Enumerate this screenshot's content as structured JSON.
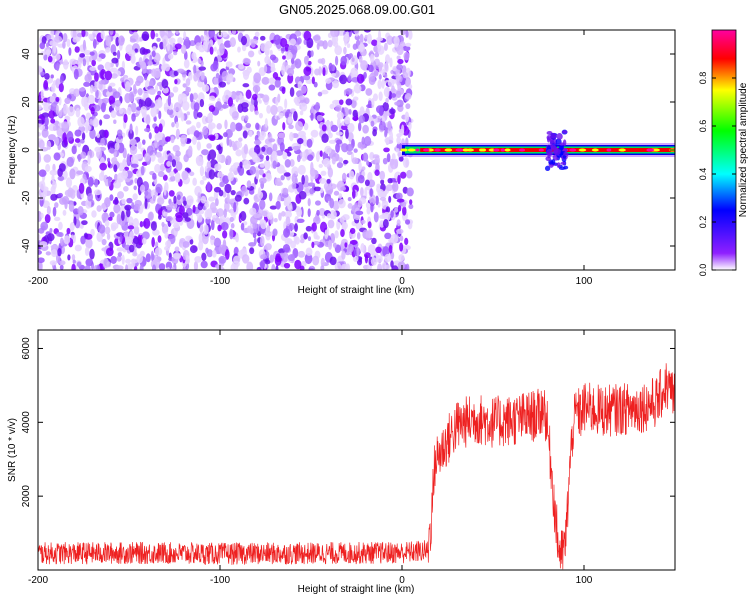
{
  "page": {
    "title": "GN05.2025.068.09.00.G01"
  },
  "chart_data": [
    {
      "type": "heatmap",
      "title": "GN05.2025.068.09.00.G01",
      "xlabel": "Height of straight line (km)",
      "ylabel": "Frequency (Hz)",
      "xlim": [
        -200,
        150
      ],
      "ylim": [
        -50,
        50
      ],
      "xticks": [
        -200,
        -100,
        0,
        100
      ],
      "yticks": [
        -40,
        -20,
        0,
        20,
        40
      ],
      "grid": false,
      "colorbar": {
        "label": "Normalized spectral amplitude",
        "range": [
          0,
          1
        ],
        "ticks": [
          0.0,
          0.2,
          0.4,
          0.6,
          0.8
        ],
        "tick_labels": [
          "0.0",
          "0.2",
          "0.4",
          "0.6",
          "0.8"
        ],
        "colormap": [
          "#ffffff",
          "#7f00ff",
          "#0000ff",
          "#00ffff",
          "#00ff00",
          "#ffff00",
          "#ff0000",
          "#ff00a0"
        ]
      },
      "noise_region": {
        "x_range": [
          -200,
          5
        ],
        "freq_range": [
          -50,
          50
        ],
        "amplitude": "0.0-0.2"
      },
      "signal_band": [
        {
          "x_start": 0,
          "x_end": 150,
          "freq": 0,
          "amplitude": 0.85
        },
        {
          "x_start": 80,
          "x_end": 90,
          "freq": 3,
          "amplitude": 0.45
        }
      ]
    },
    {
      "type": "line",
      "xlabel": "Height of straight line (km)",
      "ylabel": "SNR (10 * v/v)",
      "xlim": [
        -200,
        150
      ],
      "ylim": [
        0,
        6500
      ],
      "xticks": [
        -200,
        -100,
        0,
        100
      ],
      "yticks": [
        2000,
        4000,
        6000
      ],
      "grid": false,
      "series": [
        {
          "color": "#ee2020",
          "x": [
            -200,
            -150,
            -100,
            -50,
            0,
            14,
            16,
            18,
            20,
            25,
            30,
            40,
            50,
            60,
            70,
            75,
            78,
            80,
            82,
            84,
            86,
            88,
            90,
            92,
            94,
            96,
            98,
            100,
            110,
            120,
            130,
            140,
            145,
            150
          ],
          "y": [
            450,
            460,
            440,
            450,
            470,
            520,
            1300,
            2900,
            3100,
            3500,
            3900,
            4100,
            4000,
            4050,
            4150,
            4200,
            4450,
            3800,
            2800,
            1600,
            600,
            400,
            800,
            2600,
            3900,
            4300,
            4200,
            4400,
            4300,
            4350,
            4400,
            4550,
            5000,
            4700
          ],
          "noise_amplitude": 550
        }
      ]
    }
  ]
}
